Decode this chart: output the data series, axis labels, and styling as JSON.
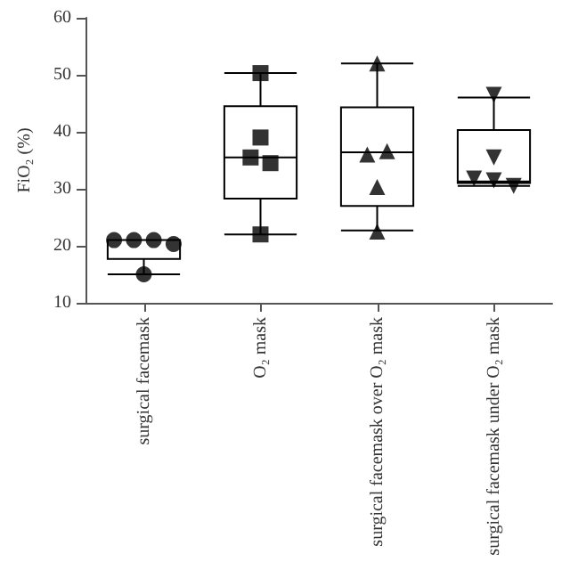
{
  "chart_data": {
    "type": "box",
    "ylabel": "FiO₂ (%)",
    "categories": [
      "surgical facemask",
      "O₂ mask",
      "surgical facemask over O₂ mask",
      "surgical facemask under O₂ mask"
    ],
    "boxes": [
      {
        "low": 15,
        "q1": 17.7,
        "median": 21,
        "q3": 21,
        "high": 21
      },
      {
        "low": 22,
        "q1": 28.3,
        "median": 35.5,
        "q3": 44.5,
        "high": 50.3
      },
      {
        "low": 22.7,
        "q1": 27,
        "median": 36.4,
        "q3": 44.3,
        "high": 52
      },
      {
        "low": 30.5,
        "q1": 31,
        "median": 31.3,
        "q3": 40.3,
        "high": 46
      }
    ],
    "color": "#000000",
    "series": [
      {
        "type": "scatter",
        "marker": "circle",
        "color": "#000000",
        "x": [
          "surgical facemask",
          "surgical facemask",
          "surgical facemask",
          "surgical facemask",
          "surgical facemask"
        ],
        "values": [
          21,
          21,
          21,
          20.3,
          15
        ]
      },
      {
        "type": "scatter",
        "marker": "square",
        "color": "#000000",
        "x": [
          "O₂ mask",
          "O₂ mask",
          "O₂ mask",
          "O₂ mask",
          "O₂ mask"
        ],
        "values": [
          50.3,
          39,
          35.5,
          34.5,
          22
        ]
      },
      {
        "type": "scatter",
        "marker": "triangle",
        "color": "#000000",
        "x": [
          "surgical facemask over O₂ mask",
          "surgical facemask over O₂ mask",
          "surgical facemask over O₂ mask",
          "surgical facemask over O₂ mask",
          "surgical facemask over O₂ mask"
        ],
        "values": [
          52,
          36,
          36.6,
          30.3,
          22.5
        ]
      },
      {
        "type": "scatter",
        "marker": "triangle-down",
        "color": "#000000",
        "x": [
          "surgical facemask under O₂ mask",
          "surgical facemask under O₂ mask",
          "surgical facemask under O₂ mask",
          "surgical facemask under O₂ mask",
          "surgical facemask under O₂ mask"
        ],
        "values": [
          46.5,
          35.5,
          31.8,
          31.5,
          30.5
        ]
      }
    ],
    "ylim": [
      10,
      60
    ],
    "yticks": [
      10,
      20,
      30,
      40,
      50,
      60
    ],
    "grid": false
  }
}
